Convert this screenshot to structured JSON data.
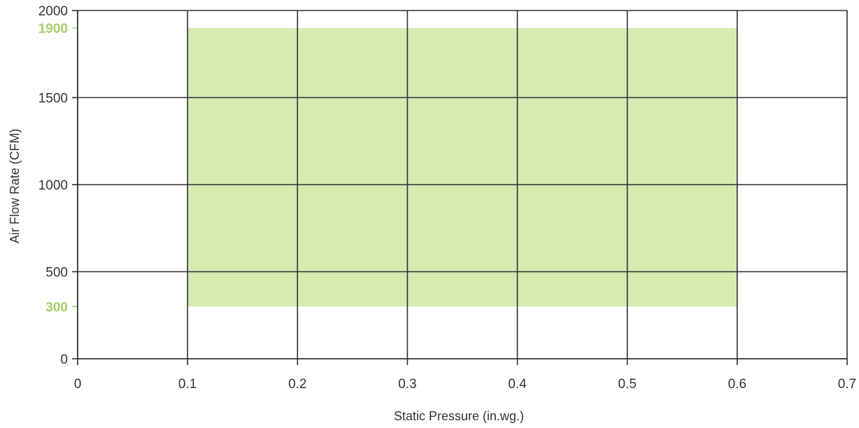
{
  "chart_data": {
    "type": "area",
    "title": "",
    "xlabel": "Static Pressure (in.wg.)",
    "ylabel": "Air Flow Rate (CFM)",
    "xlim": [
      0,
      0.7
    ],
    "ylim": [
      0,
      2000
    ],
    "x_ticks": [
      "0",
      "0.1",
      "0.2",
      "0.3",
      "0.4",
      "0.5",
      "0.6",
      "0.7"
    ],
    "x_tick_values": [
      0,
      0.1,
      0.2,
      0.3,
      0.4,
      0.5,
      0.6,
      0.7
    ],
    "y_ticks": [
      "0",
      "500",
      "1000",
      "1500",
      "2000"
    ],
    "y_tick_values": [
      0,
      500,
      1000,
      1500,
      2000
    ],
    "highlight_ticks": [
      "300",
      "1900"
    ],
    "highlight_tick_values": [
      300,
      1900
    ],
    "grid": true,
    "region": {
      "x": [
        0.1,
        0.6
      ],
      "y": [
        300,
        1900
      ],
      "color": "#d6eab2"
    },
    "colors": {
      "grid": "#2b2f36",
      "highlight_text": "#a7cf6b",
      "text": "#333333"
    }
  }
}
